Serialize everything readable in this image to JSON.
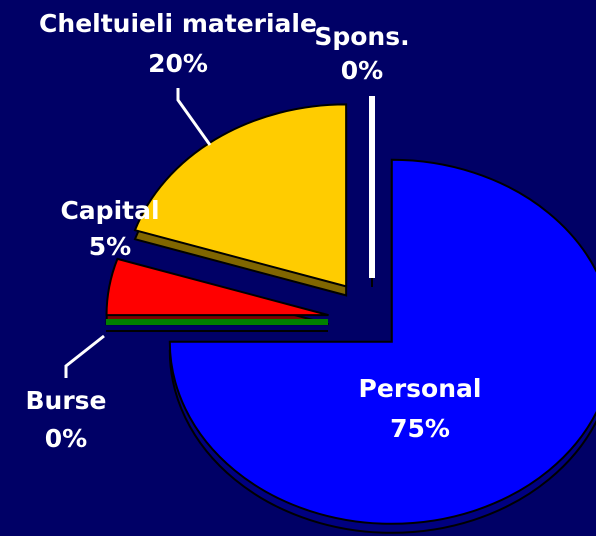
{
  "chart_data": {
    "type": "pie",
    "categories": [
      "Personal",
      "Burse",
      "Capital",
      "Cheltuieli materiale",
      "Spons."
    ],
    "values": [
      75,
      0,
      5,
      20,
      0
    ],
    "value_labels": [
      "75%",
      "0%",
      "5%",
      "20%",
      "0%"
    ],
    "colors": [
      "#0000ff",
      "#008000",
      "#ff0000",
      "#ffcc00",
      "#ffffff"
    ]
  }
}
